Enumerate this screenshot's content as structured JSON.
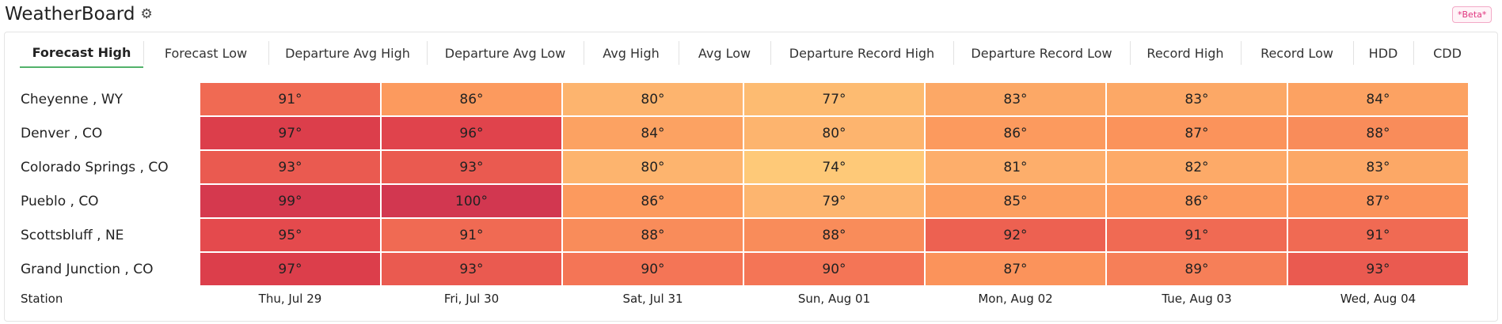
{
  "app": {
    "title": "WeatherBoard",
    "badge": "*Beta*"
  },
  "icons": {
    "settings": "gear-icon"
  },
  "tabs": [
    {
      "label": "Forecast High",
      "active": true
    },
    {
      "label": "Forecast Low"
    },
    {
      "label": "Departure Avg High"
    },
    {
      "label": "Departure Avg Low"
    },
    {
      "label": "Avg High"
    },
    {
      "label": "Avg Low"
    },
    {
      "label": "Departure Record High"
    },
    {
      "label": "Departure Record Low"
    },
    {
      "label": "Record High"
    },
    {
      "label": "Record Low"
    },
    {
      "label": "HDD"
    },
    {
      "label": "CDD"
    }
  ],
  "table": {
    "station_header": "Station",
    "columns": [
      "Thu, Jul 29",
      "Fri, Jul 30",
      "Sat, Jul 31",
      "Sun, Aug 01",
      "Mon, Aug 02",
      "Tue, Aug 03",
      "Wed, Aug 04"
    ],
    "rows": [
      {
        "station": "Cheyenne , WY",
        "values": [
          "91°",
          "86°",
          "80°",
          "77°",
          "83°",
          "83°",
          "84°"
        ]
      },
      {
        "station": "Denver , CO",
        "values": [
          "97°",
          "96°",
          "84°",
          "80°",
          "86°",
          "87°",
          "88°"
        ]
      },
      {
        "station": "Colorado Springs , CO",
        "values": [
          "93°",
          "93°",
          "80°",
          "74°",
          "81°",
          "82°",
          "83°"
        ]
      },
      {
        "station": "Pueblo , CO",
        "values": [
          "99°",
          "100°",
          "86°",
          "79°",
          "85°",
          "86°",
          "87°"
        ]
      },
      {
        "station": "Scottsbluff , NE",
        "values": [
          "95°",
          "91°",
          "88°",
          "88°",
          "92°",
          "91°",
          "91°"
        ]
      },
      {
        "station": "Grand Junction , CO",
        "values": [
          "97°",
          "93°",
          "90°",
          "90°",
          "87°",
          "89°",
          "93°"
        ]
      }
    ]
  },
  "colors": {
    "74": "#fec978",
    "77": "#fdbb71",
    "79": "#fdb56f",
    "80": "#fdb46e",
    "81": "#fdae6b",
    "82": "#fdaa68",
    "83": "#fca866",
    "84": "#fca262",
    "85": "#fc9f60",
    "86": "#fc9a5e",
    "87": "#fb935b",
    "88": "#f98c5a",
    "89": "#f67f58",
    "90": "#f47556",
    "91": "#f06a53",
    "92": "#ed6151",
    "93": "#ea5a50",
    "95": "#e44a4d",
    "96": "#e0434c",
    "97": "#dc3e4b",
    "99": "#d5394e",
    "100": "#d23750",
    "active_tab_underline": "#52b26a",
    "beta_badge": "#e0357e"
  }
}
